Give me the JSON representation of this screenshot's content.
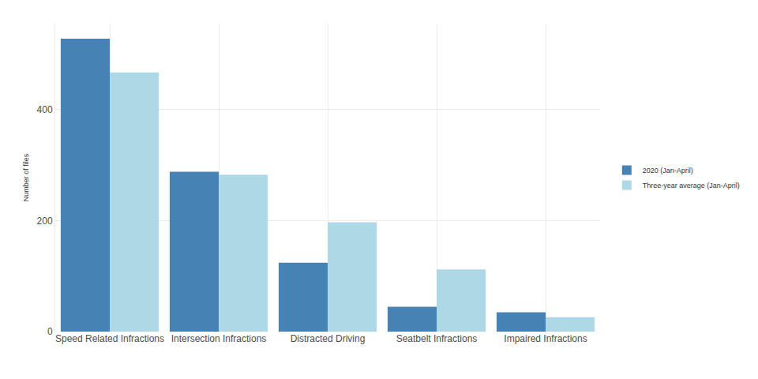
{
  "chart_data": {
    "type": "bar",
    "y_label": "Number of files",
    "categories": [
      "Speed Related Infractions",
      "Intersection Infractions",
      "Distracted Driving",
      "Seatbelt Infractions",
      "Impaired Infractions"
    ],
    "series": [
      {
        "name": "2020 (Jan-April)",
        "color": "#4682b4",
        "values": [
          528,
          288,
          124,
          45,
          35
        ]
      },
      {
        "name": "Three-year average (Jan-April)",
        "color": "#add8e6",
        "values": [
          467,
          283,
          197,
          112,
          26
        ]
      }
    ],
    "ylim": [
      0,
      555
    ],
    "yticks": [
      0,
      200,
      400
    ],
    "grid": true,
    "legend": "right"
  }
}
